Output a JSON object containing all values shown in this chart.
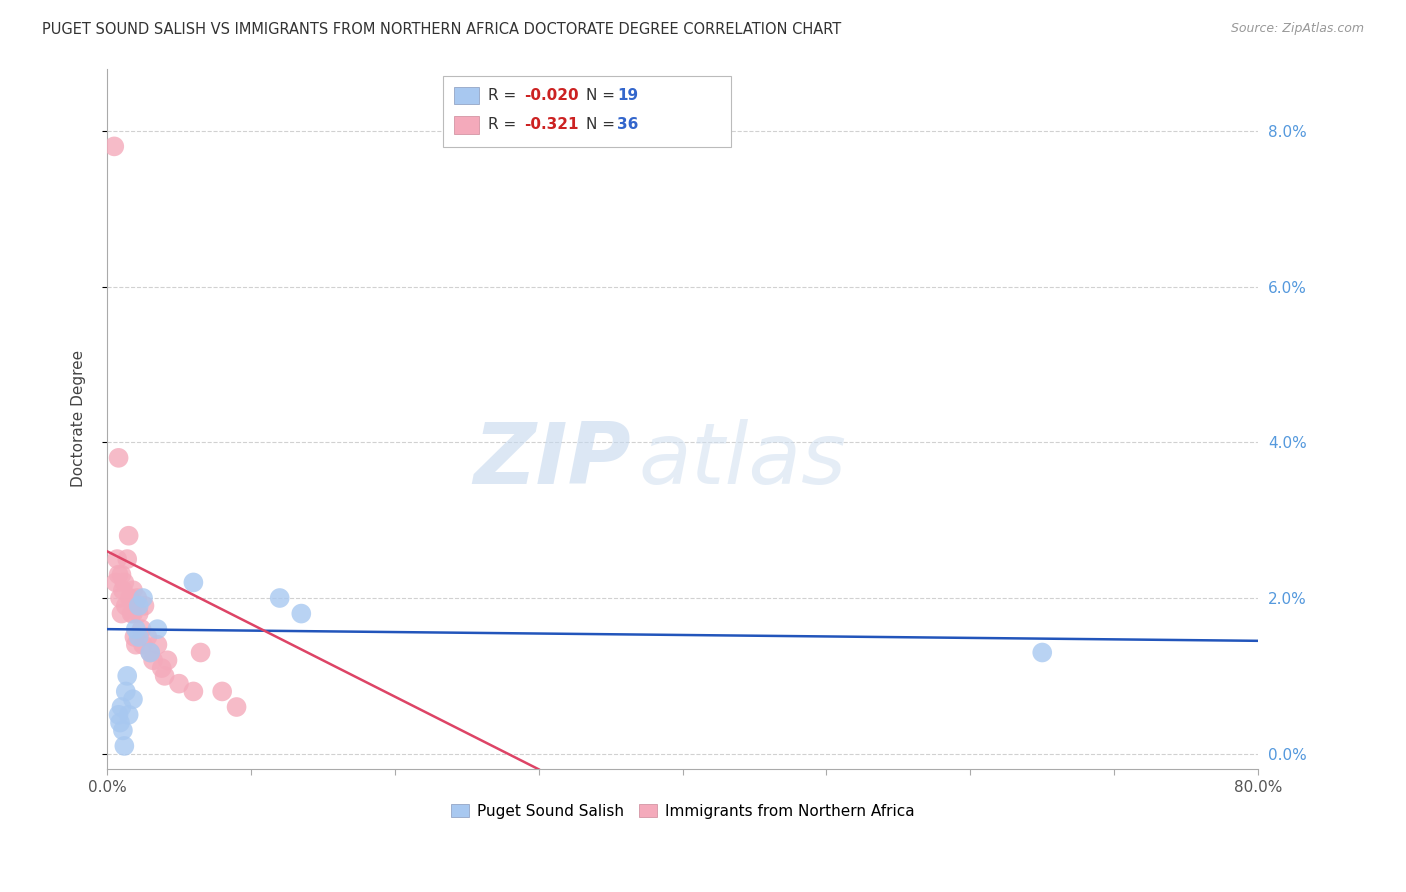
{
  "title": "PUGET SOUND SALISH VS IMMIGRANTS FROM NORTHERN AFRICA DOCTORATE DEGREE CORRELATION CHART",
  "source": "Source: ZipAtlas.com",
  "ylabel": "Doctorate Degree",
  "xlim": [
    0,
    0.8
  ],
  "ylim": [
    -0.002,
    0.088
  ],
  "yticks": [
    0.0,
    0.02,
    0.04,
    0.06,
    0.08
  ],
  "ytick_labels": [
    "0.0%",
    "2.0%",
    "4.0%",
    "6.0%",
    "8.0%"
  ],
  "blue_color": "#A8C8F0",
  "pink_color": "#F4AABB",
  "blue_line_color": "#2255BB",
  "pink_line_color": "#DD4466",
  "blue_scatter_x": [
    0.008,
    0.009,
    0.01,
    0.011,
    0.012,
    0.013,
    0.014,
    0.015,
    0.018,
    0.02,
    0.022,
    0.022,
    0.025,
    0.03,
    0.035,
    0.06,
    0.12,
    0.135,
    0.65
  ],
  "blue_scatter_y": [
    0.005,
    0.004,
    0.006,
    0.003,
    0.001,
    0.008,
    0.01,
    0.005,
    0.007,
    0.016,
    0.015,
    0.019,
    0.02,
    0.013,
    0.016,
    0.022,
    0.02,
    0.018,
    0.013
  ],
  "pink_scatter_x": [
    0.005,
    0.006,
    0.007,
    0.008,
    0.009,
    0.01,
    0.01,
    0.011,
    0.012,
    0.013,
    0.014,
    0.015,
    0.016,
    0.017,
    0.018,
    0.018,
    0.019,
    0.02,
    0.021,
    0.022,
    0.024,
    0.025,
    0.026,
    0.028,
    0.03,
    0.032,
    0.035,
    0.038,
    0.04,
    0.042,
    0.05,
    0.06,
    0.065,
    0.08,
    0.09,
    0.008
  ],
  "pink_scatter_y": [
    0.078,
    0.022,
    0.025,
    0.023,
    0.02,
    0.023,
    0.018,
    0.021,
    0.022,
    0.019,
    0.025,
    0.028,
    0.02,
    0.018,
    0.021,
    0.018,
    0.015,
    0.014,
    0.02,
    0.018,
    0.016,
    0.014,
    0.019,
    0.015,
    0.013,
    0.012,
    0.014,
    0.011,
    0.01,
    0.012,
    0.009,
    0.008,
    0.013,
    0.008,
    0.006,
    0.038
  ],
  "blue_line_x": [
    0.0,
    0.8
  ],
  "blue_line_y": [
    0.016,
    0.0145
  ],
  "pink_line_x": [
    0.0,
    0.3
  ],
  "pink_line_y": [
    0.026,
    -0.002
  ],
  "watermark_zip": "ZIP",
  "watermark_atlas": "atlas",
  "background_color": "#FFFFFF",
  "grid_color": "#CCCCCC"
}
